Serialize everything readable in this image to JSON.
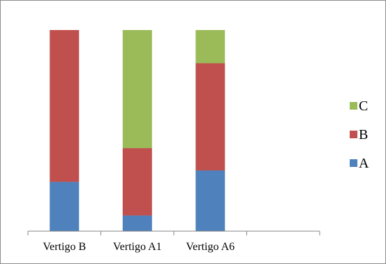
{
  "chart_data": {
    "type": "bar",
    "stacked": true,
    "percent_stacked": true,
    "categories": [
      "Vertigo B",
      "Vertigo A1",
      "Vertigo A6",
      ""
    ],
    "series": [
      {
        "name": "A",
        "color": "#4f81bd",
        "values": [
          24.5,
          7.8,
          30.2,
          0
        ]
      },
      {
        "name": "B",
        "color": "#c0504d",
        "values": [
          75.5,
          33.5,
          53.3,
          0
        ]
      },
      {
        "name": "C",
        "color": "#9bbb59",
        "values": [
          0,
          58.7,
          16.5,
          0
        ]
      }
    ],
    "title": "",
    "xlabel": "",
    "ylabel": "",
    "ylim": [
      0,
      100
    ],
    "grid": false,
    "legend_position": "right"
  }
}
